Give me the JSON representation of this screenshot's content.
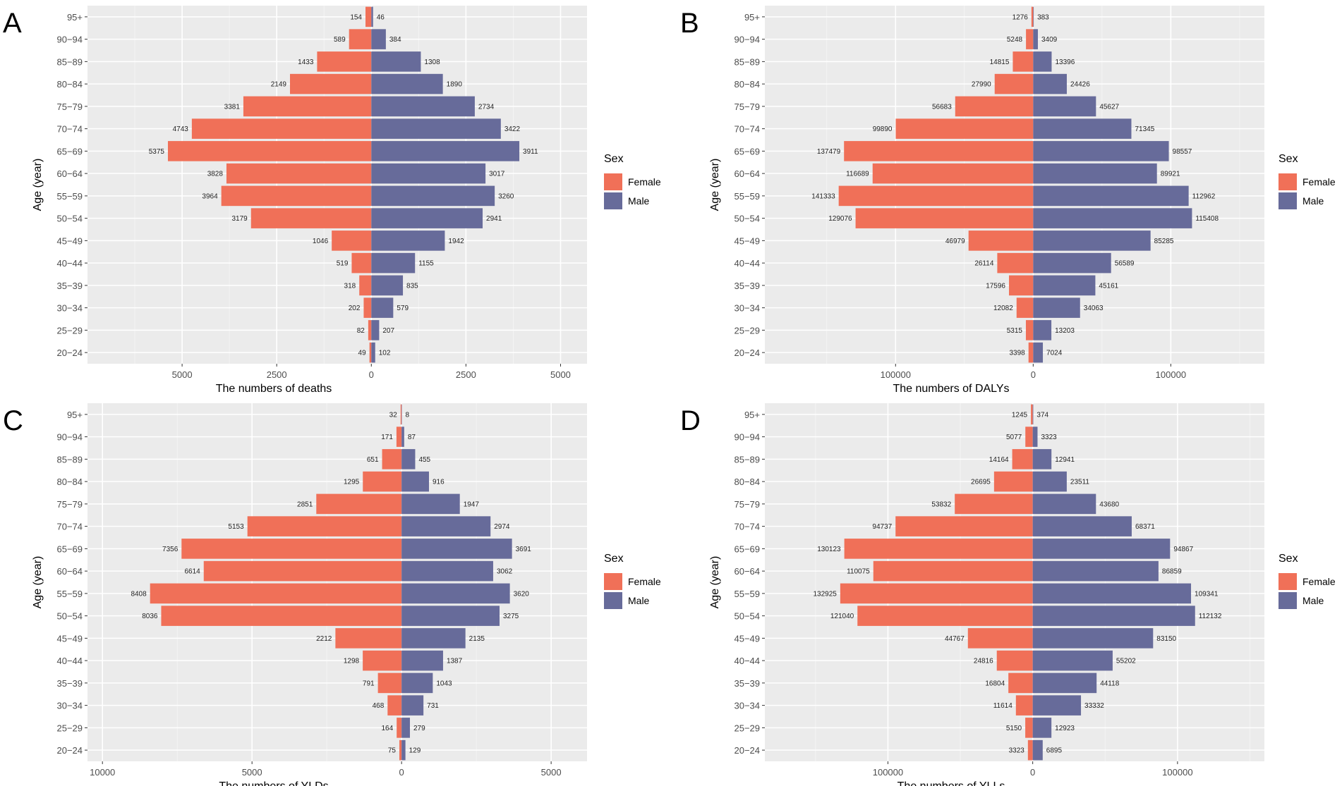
{
  "colors": {
    "female": "#F07058",
    "male": "#676B9A",
    "panel_bg": "#EBEBEB",
    "grid": "#FFFFFF",
    "text": "#222222"
  },
  "legend": {
    "title": "Sex",
    "female_label": "Female",
    "male_label": "Male"
  },
  "chart_data": [
    {
      "type": "bar",
      "panel_label": "A",
      "title": "",
      "xlabel": "The numbers of deaths",
      "ylabel": "Age (year)",
      "xlim": [
        -7500,
        5700
      ],
      "xticks": [
        -5000,
        -2500,
        0,
        2500,
        5000
      ],
      "xtick_labels": [
        "5000",
        "2500",
        "0",
        "2500",
        "5000"
      ],
      "categories": [
        "20−24",
        "25−29",
        "30−34",
        "35−39",
        "40−44",
        "45−49",
        "50−54",
        "55−59",
        "60−64",
        "65−69",
        "70−74",
        "75−79",
        "80−84",
        "85−89",
        "90−94",
        "95+"
      ],
      "series": [
        {
          "name": "Female",
          "values": [
            49,
            82,
            202,
            318,
            519,
            1046,
            3179,
            3964,
            3828,
            5375,
            4743,
            3381,
            2149,
            1433,
            589,
            154
          ]
        },
        {
          "name": "Male",
          "values": [
            102,
            207,
            579,
            835,
            1155,
            1942,
            2941,
            3260,
            3017,
            3911,
            3422,
            2734,
            1890,
            1308,
            384,
            46
          ]
        }
      ]
    },
    {
      "type": "bar",
      "panel_label": "B",
      "title": "",
      "xlabel": "The numbers of DALYs",
      "ylabel": "Age (year)",
      "xlim": [
        -195000,
        168000
      ],
      "xticks": [
        -100000,
        0,
        100000
      ],
      "xtick_labels": [
        "100000",
        "0",
        "100000"
      ],
      "categories": [
        "20−24",
        "25−29",
        "30−34",
        "35−39",
        "40−44",
        "45−49",
        "50−54",
        "55−59",
        "60−64",
        "65−69",
        "70−74",
        "75−79",
        "80−84",
        "85−89",
        "90−94",
        "95+"
      ],
      "series": [
        {
          "name": "Female",
          "values": [
            3398,
            5315,
            12082,
            17596,
            26114,
            46979,
            129076,
            141333,
            116689,
            137479,
            99890,
            56683,
            27990,
            14815,
            5248,
            1276
          ]
        },
        {
          "name": "Male",
          "values": [
            7024,
            13203,
            34063,
            45161,
            56589,
            85285,
            115408,
            112962,
            89921,
            98557,
            71345,
            45627,
            24426,
            13396,
            3409,
            383
          ]
        }
      ]
    },
    {
      "type": "bar",
      "panel_label": "C",
      "title": "",
      "xlabel": "The numbers of YLDs",
      "ylabel": "Age (year)",
      "xlim": [
        -10500,
        6200
      ],
      "xticks": [
        -10000,
        -5000,
        0,
        5000
      ],
      "xtick_labels": [
        "10000",
        "5000",
        "0",
        "5000"
      ],
      "categories": [
        "20−24",
        "25−29",
        "30−34",
        "35−39",
        "40−44",
        "45−49",
        "50−54",
        "55−59",
        "60−64",
        "65−69",
        "70−74",
        "75−79",
        "80−84",
        "85−89",
        "90−94",
        "95+"
      ],
      "series": [
        {
          "name": "Female",
          "values": [
            75,
            164,
            468,
            791,
            1298,
            2212,
            8036,
            8408,
            6614,
            7356,
            5153,
            2851,
            1295,
            651,
            171,
            32
          ]
        },
        {
          "name": "Male",
          "values": [
            129,
            279,
            731,
            1043,
            1387,
            2135,
            3275,
            3620,
            3062,
            3691,
            2974,
            1947,
            916,
            455,
            87,
            8
          ]
        }
      ]
    },
    {
      "type": "bar",
      "panel_label": "D",
      "title": "",
      "xlabel": "The numbers of YLLs",
      "ylabel": "Age (year)",
      "xlim": [
        -185000,
        160000
      ],
      "xticks": [
        -100000,
        0,
        100000
      ],
      "xtick_labels": [
        "100000",
        "0",
        "100000"
      ],
      "categories": [
        "20−24",
        "25−29",
        "30−34",
        "35−39",
        "40−44",
        "45−49",
        "50−54",
        "55−59",
        "60−64",
        "65−69",
        "70−74",
        "75−79",
        "80−84",
        "85−89",
        "90−94",
        "95+"
      ],
      "series": [
        {
          "name": "Female",
          "values": [
            3323,
            5150,
            11614,
            16804,
            24816,
            44767,
            121040,
            132925,
            110075,
            130123,
            94737,
            53832,
            26695,
            14164,
            5077,
            1245
          ]
        },
        {
          "name": "Male",
          "values": [
            6895,
            12923,
            33332,
            44118,
            55202,
            83150,
            112132,
            109341,
            86859,
            94867,
            68371,
            43680,
            23511,
            12941,
            3323,
            374
          ]
        }
      ]
    }
  ]
}
